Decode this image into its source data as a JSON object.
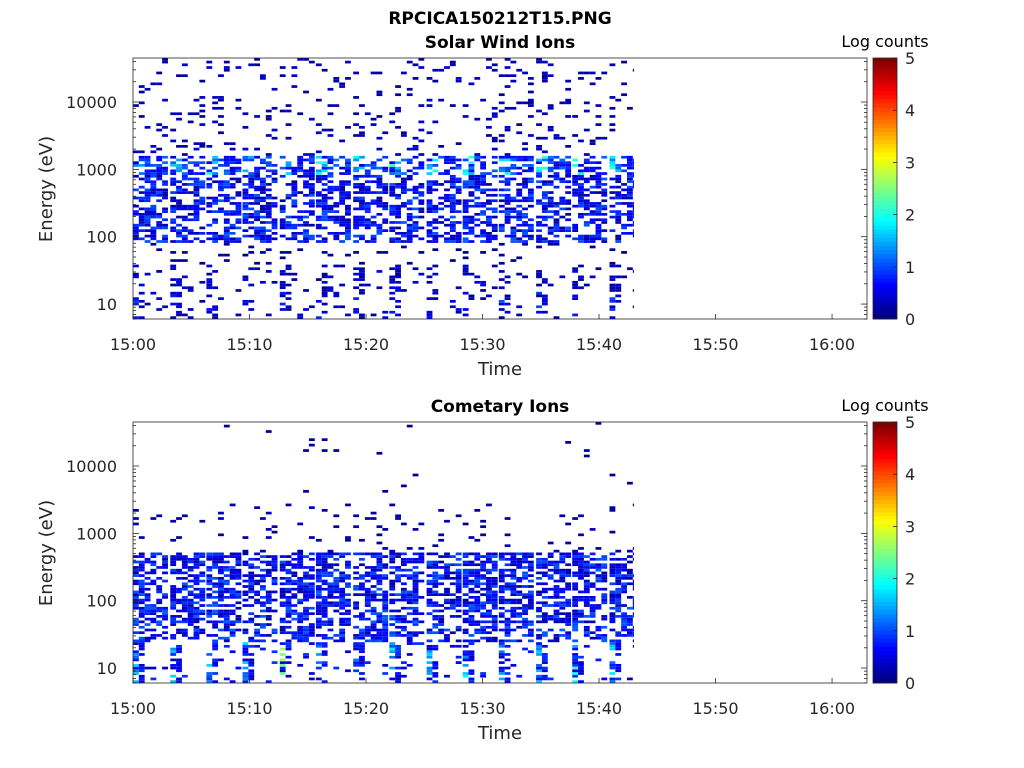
{
  "figure_title": "RPCICA150212T15.PNG",
  "chart_data": [
    {
      "type": "heatmap",
      "title": "Solar Wind Ions",
      "xlabel": "Time",
      "ylabel": "Energy (eV)",
      "y_scale": "log",
      "ylim": [
        6,
        45000
      ],
      "xlim": [
        "15:00",
        "16:03"
      ],
      "x_ticks": [
        "15:00",
        "15:10",
        "15:20",
        "15:30",
        "15:40",
        "15:50",
        "16:00"
      ],
      "y_ticks": [
        "10",
        "100",
        "1000",
        "10000"
      ],
      "colorbar": {
        "label": "Log counts",
        "min": 0,
        "max": 5,
        "ticks": [
          "0",
          "1",
          "2",
          "3",
          "4",
          "5"
        ],
        "colormap": "jet"
      },
      "data_extent": [
        "15:00",
        "15:43"
      ],
      "sweep_start_minutes": [
        0,
        3.2,
        6.3,
        9.4,
        12.6,
        15.7,
        18.9,
        22.0,
        25.2,
        28.3,
        31.4,
        34.6,
        37.7,
        40.9
      ],
      "sweep_peaks_log_counts": [
        1.9,
        1.8,
        1.9,
        1.8,
        1.9,
        1.8,
        1.9,
        1.8,
        1.9,
        1.8,
        1.9,
        2.0,
        1.8,
        1.9
      ]
    },
    {
      "type": "heatmap",
      "title": "Cometary Ions",
      "xlabel": "Time",
      "ylabel": "Energy (eV)",
      "y_scale": "log",
      "ylim": [
        6,
        45000
      ],
      "xlim": [
        "15:00",
        "16:03"
      ],
      "x_ticks": [
        "15:00",
        "15:10",
        "15:20",
        "15:30",
        "15:40",
        "15:50",
        "16:00"
      ],
      "y_ticks": [
        "10",
        "100",
        "1000",
        "10000"
      ],
      "colorbar": {
        "label": "Log counts",
        "min": 0,
        "max": 5,
        "ticks": [
          "0",
          "1",
          "2",
          "3",
          "4",
          "5"
        ],
        "colormap": "jet"
      },
      "data_extent": [
        "15:00",
        "15:43"
      ],
      "sweep_start_minutes": [
        0,
        3.2,
        6.3,
        9.4,
        12.6,
        15.7,
        18.9,
        22.0,
        25.2,
        28.3,
        31.4,
        34.6,
        37.7,
        40.9
      ],
      "sweep_peaks_log_counts": [
        1.5,
        1.4,
        1.5,
        1.4,
        2.4,
        1.8,
        1.5,
        1.5,
        1.5,
        1.6,
        1.5,
        1.4,
        2.3,
        1.5
      ]
    }
  ]
}
